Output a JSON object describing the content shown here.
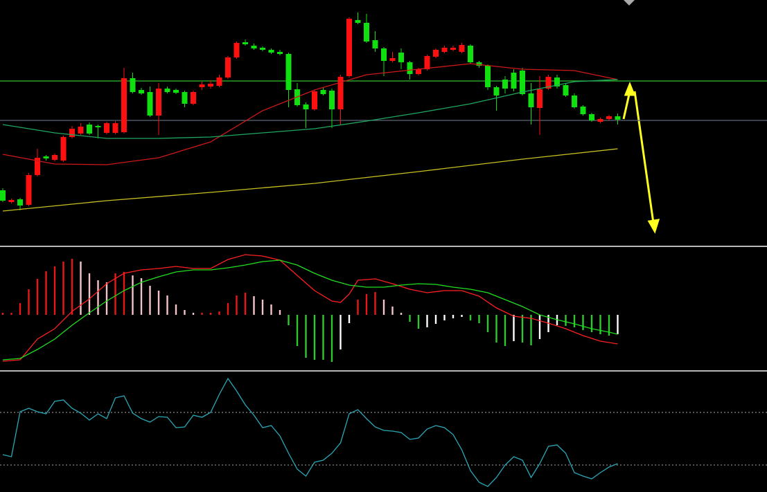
{
  "chart_data": [
    {
      "type": "candlestick",
      "xlim": [
        -0.32,
        88.24
      ],
      "ylim": [
        5,
        360
      ],
      "up_color": "#ff1010",
      "down_color": "#10e010",
      "open": [
        85,
        68,
        72,
        64,
        107,
        134,
        129,
        128,
        162,
        167,
        180,
        178,
        168,
        168,
        169,
        247,
        230,
        227,
        193,
        232,
        230,
        227,
        210,
        234,
        235,
        236,
        248,
        277,
        299,
        294,
        291,
        288,
        285,
        282,
        231,
        209,
        202,
        230,
        229,
        202,
        250,
        331,
        327,
        302,
        290,
        272,
        284,
        270,
        253,
        260,
        278,
        285,
        288,
        285,
        294,
        270,
        265,
        234,
        245,
        255,
        258,
        225,
        204,
        232,
        248,
        237,
        222,
        206,
        195,
        184,
        188,
        192
      ],
      "high": [
        88,
        73,
        74,
        110,
        145,
        136,
        138,
        164,
        178,
        182,
        183,
        180,
        184,
        185,
        262,
        255,
        233,
        235,
        240,
        235,
        232,
        229,
        229,
        242,
        244,
        252,
        279,
        300,
        303,
        297,
        293,
        290,
        288,
        284,
        240,
        212,
        230,
        233,
        232,
        252,
        335,
        342,
        340,
        315,
        292,
        285,
        290,
        272,
        262,
        281,
        290,
        294,
        294,
        298,
        296,
        272,
        267,
        236,
        250,
        260,
        262,
        240,
        250,
        252,
        252,
        240,
        225,
        208,
        197,
        190,
        194,
        196
      ],
      "low": [
        68,
        66,
        56,
        62,
        105,
        128,
        127,
        126,
        160,
        165,
        165,
        160,
        166,
        166,
        167,
        225,
        223,
        191,
        165,
        225,
        224,
        205,
        208,
        230,
        232,
        234,
        246,
        275,
        294,
        288,
        286,
        282,
        280,
        205,
        206,
        175,
        200,
        222,
        175,
        180,
        248,
        325,
        298,
        285,
        250,
        270,
        260,
        245,
        251,
        258,
        276,
        283,
        286,
        283,
        268,
        262,
        230,
        200,
        225,
        228,
        222,
        180,
        165,
        230,
        232,
        220,
        203,
        193,
        184,
        182,
        186,
        180
      ],
      "close": [
        70,
        71,
        63,
        107,
        132,
        131,
        136,
        162,
        174,
        177,
        167,
        176,
        182,
        182,
        247,
        227,
        225,
        193,
        232,
        227,
        226,
        210,
        227,
        238,
        239,
        248,
        277,
        298,
        296,
        290,
        288,
        284,
        282,
        230,
        208,
        202,
        228,
        224,
        202,
        249,
        333,
        327,
        300,
        290,
        272,
        276,
        270,
        253,
        260,
        279,
        288,
        291,
        291,
        295,
        270,
        265,
        234,
        222,
        232,
        232,
        224,
        205,
        231,
        249,
        235,
        222,
        205,
        195,
        186,
        188,
        192,
        187
      ],
      "series": [
        {
          "color": "#d01818",
          "x": [
            0,
            6,
            12,
            18,
            24,
            30,
            36,
            42,
            48,
            54,
            60,
            66,
            71
          ],
          "values": [
            137,
            123,
            122,
            132,
            155,
            200,
            230,
            252,
            260,
            268,
            260,
            258,
            245
          ]
        },
        {
          "color": "#1fa860",
          "x": [
            0,
            6,
            12,
            18,
            24,
            30,
            36,
            42,
            48,
            54,
            60,
            66,
            71
          ],
          "values": [
            180,
            168,
            160,
            160,
            162,
            168,
            174,
            185,
            197,
            210,
            227,
            242,
            245
          ]
        },
        {
          "color": "#c8c020",
          "x": [
            0,
            12,
            24,
            36,
            48,
            60,
            71
          ],
          "values": [
            55,
            70,
            82,
            95,
            112,
            130,
            145
          ]
        }
      ],
      "hlines": [
        {
          "value": 243,
          "color": "#30c030"
        },
        {
          "value": 186,
          "color": "#5a6878"
        }
      ]
    },
    {
      "type": "macd",
      "xlim": [
        -0.32,
        88.24
      ],
      "ylim": [
        -80,
        97
      ],
      "colors": {
        "rise_pos": "#e81818",
        "fall_pos": "#f4c4c8",
        "fall_neg": "#30c830",
        "rise_neg": "#ffffff"
      },
      "values": [
        3,
        3,
        17,
        37,
        52,
        63,
        70,
        77,
        81,
        77,
        60,
        50,
        47,
        60,
        62,
        57,
        53,
        42,
        35,
        28,
        15,
        7,
        3,
        3,
        3,
        5,
        17,
        28,
        32,
        27,
        22,
        15,
        7,
        -15,
        -45,
        -62,
        -65,
        -65,
        -68,
        -50,
        -12,
        22,
        30,
        33,
        22,
        12,
        3,
        -10,
        -20,
        -18,
        -13,
        -8,
        -5,
        -3,
        -8,
        -12,
        -25,
        -40,
        -45,
        -38,
        -40,
        -44,
        -35,
        -25,
        -15,
        -16,
        -18,
        -22,
        -25,
        -28,
        -30,
        -28
      ],
      "series": [
        {
          "color": "#ff2020",
          "x": [
            0,
            2,
            4,
            6,
            8,
            10,
            12,
            14,
            16,
            18,
            20,
            22,
            24,
            26,
            28,
            30,
            32,
            34,
            36,
            38,
            39,
            40,
            41,
            43,
            45,
            47,
            49,
            51,
            53,
            55,
            57,
            59,
            61,
            63,
            65,
            67,
            69,
            71
          ],
          "values": [
            -67,
            -65,
            -35,
            -20,
            5,
            23,
            45,
            60,
            65,
            67,
            70,
            67,
            67,
            80,
            87,
            85,
            79,
            57,
            35,
            20,
            18,
            30,
            50,
            52,
            45,
            37,
            32,
            35,
            35,
            27,
            10,
            -2,
            -5,
            -12,
            -20,
            -30,
            -38,
            -42
          ]
        },
        {
          "color": "#20e020",
          "x": [
            0,
            2,
            4,
            6,
            8,
            10,
            12,
            14,
            16,
            18,
            20,
            22,
            24,
            26,
            28,
            30,
            32,
            34,
            36,
            38,
            40,
            42,
            44,
            46,
            48,
            50,
            52,
            54,
            56,
            58,
            60,
            62,
            64,
            66,
            68,
            70,
            71
          ],
          "values": [
            -65,
            -63,
            -50,
            -35,
            -15,
            3,
            20,
            35,
            47,
            55,
            62,
            65,
            65,
            68,
            72,
            77,
            79,
            72,
            60,
            50,
            43,
            40,
            40,
            43,
            45,
            44,
            40,
            37,
            32,
            22,
            12,
            0,
            -7,
            -13,
            -20,
            -25,
            -28
          ]
        }
      ]
    },
    {
      "type": "line",
      "xlim": [
        -0.32,
        88.24
      ],
      "ylim": [
        0,
        173
      ],
      "series": [
        {
          "color": "#2aa8b8",
          "values": [
            54,
            51,
            116,
            121,
            116,
            113,
            131,
            133,
            121,
            114,
            104,
            113,
            106,
            136,
            139,
            114,
            106,
            101,
            109,
            108,
            93,
            94,
            111,
            108,
            115,
            141,
            164,
            146,
            126,
            111,
            93,
            96,
            81,
            56,
            33,
            23,
            43,
            46,
            56,
            71,
            113,
            119,
            106,
            94,
            89,
            88,
            86,
            76,
            78,
            91,
            96,
            93,
            83,
            61,
            31,
            14,
            8,
            21,
            39,
            51,
            46,
            21,
            41,
            66,
            68,
            56,
            28,
            23,
            19,
            28,
            36,
            41
          ]
        }
      ],
      "hlines": [
        {
          "value": 115,
          "color": "#888888",
          "dashed": true
        },
        {
          "value": 39,
          "color": "#888888",
          "dashed": true
        }
      ]
    }
  ]
}
